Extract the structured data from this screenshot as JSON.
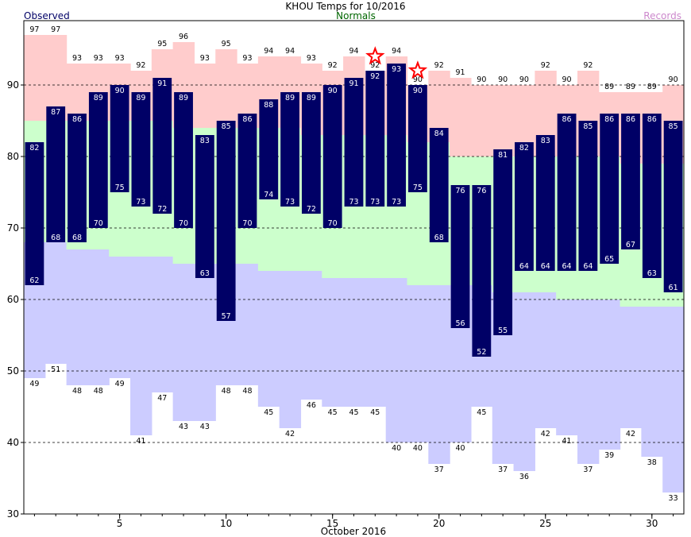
{
  "chart_data": {
    "type": "bar",
    "title": "KHOU Temps for 10/2016",
    "legend": {
      "observed": "Observed",
      "normals": "Normals",
      "records": "Records"
    },
    "xlabel": "October 2016",
    "ylim": [
      30,
      99
    ],
    "yticks": [
      30,
      40,
      50,
      60,
      70,
      80,
      90
    ],
    "xticks": [
      5,
      10,
      15,
      20,
      25,
      30
    ],
    "days": [
      1,
      2,
      3,
      4,
      5,
      6,
      7,
      8,
      9,
      10,
      11,
      12,
      13,
      14,
      15,
      16,
      17,
      18,
      19,
      20,
      21,
      22,
      23,
      24,
      25,
      26,
      27,
      28,
      29,
      30,
      31
    ],
    "series": [
      {
        "name": "Observed",
        "key": "observed_high",
        "values": [
          82,
          87,
          86,
          89,
          90,
          89,
          91,
          89,
          83,
          85,
          86,
          88,
          89,
          89,
          90,
          91,
          92,
          93,
          90,
          84,
          76,
          76,
          81,
          82,
          83,
          86,
          85,
          86,
          86,
          86,
          85
        ]
      },
      {
        "key": "observed_low",
        "values": [
          62,
          68,
          68,
          70,
          75,
          73,
          72,
          70,
          63,
          57,
          70,
          74,
          73,
          72,
          70,
          73,
          73,
          73,
          75,
          68,
          56,
          52,
          55,
          64,
          64,
          64,
          64,
          65,
          67,
          63,
          61
        ]
      },
      {
        "name": "Normals",
        "key": "normal_high",
        "values": [
          85,
          85,
          85,
          85,
          85,
          85,
          85,
          84,
          84,
          84,
          84,
          84,
          84,
          83,
          83,
          83,
          83,
          83,
          82,
          82,
          80,
          80,
          80,
          80,
          80,
          80,
          80,
          80,
          79,
          79,
          79
        ]
      },
      {
        "key": "normal_low",
        "values": [
          68,
          68,
          67,
          67,
          66,
          66,
          66,
          65,
          65,
          65,
          65,
          64,
          64,
          64,
          63,
          63,
          63,
          63,
          62,
          62,
          62,
          62,
          61,
          61,
          61,
          60,
          60,
          60,
          59,
          59,
          59
        ]
      },
      {
        "name": "Records",
        "key": "record_high",
        "values": [
          97,
          97,
          93,
          93,
          93,
          92,
          95,
          96,
          93,
          95,
          93,
          94,
          94,
          93,
          92,
          94,
          92,
          94,
          90,
          92,
          91,
          90,
          90,
          90,
          92,
          90,
          92,
          89,
          89,
          89,
          90
        ]
      },
      {
        "key": "record_low",
        "values": [
          49,
          51,
          48,
          48,
          49,
          41,
          47,
          43,
          43,
          48,
          48,
          45,
          42,
          46,
          45,
          45,
          45,
          40,
          40,
          37,
          40,
          45,
          37,
          36,
          42,
          41,
          37,
          39,
          42,
          38,
          33
        ]
      }
    ],
    "record_high_marks": [
      17,
      19
    ],
    "grid": "dashed",
    "colors": {
      "observed": "#000066",
      "normals_text": "#006600",
      "records_text": "#cc88cc",
      "record_high_fill": "#ffcccc",
      "normal_fill": "#ccffcc",
      "record_low_fill": "#ccccff",
      "star": "#ff0000"
    }
  }
}
